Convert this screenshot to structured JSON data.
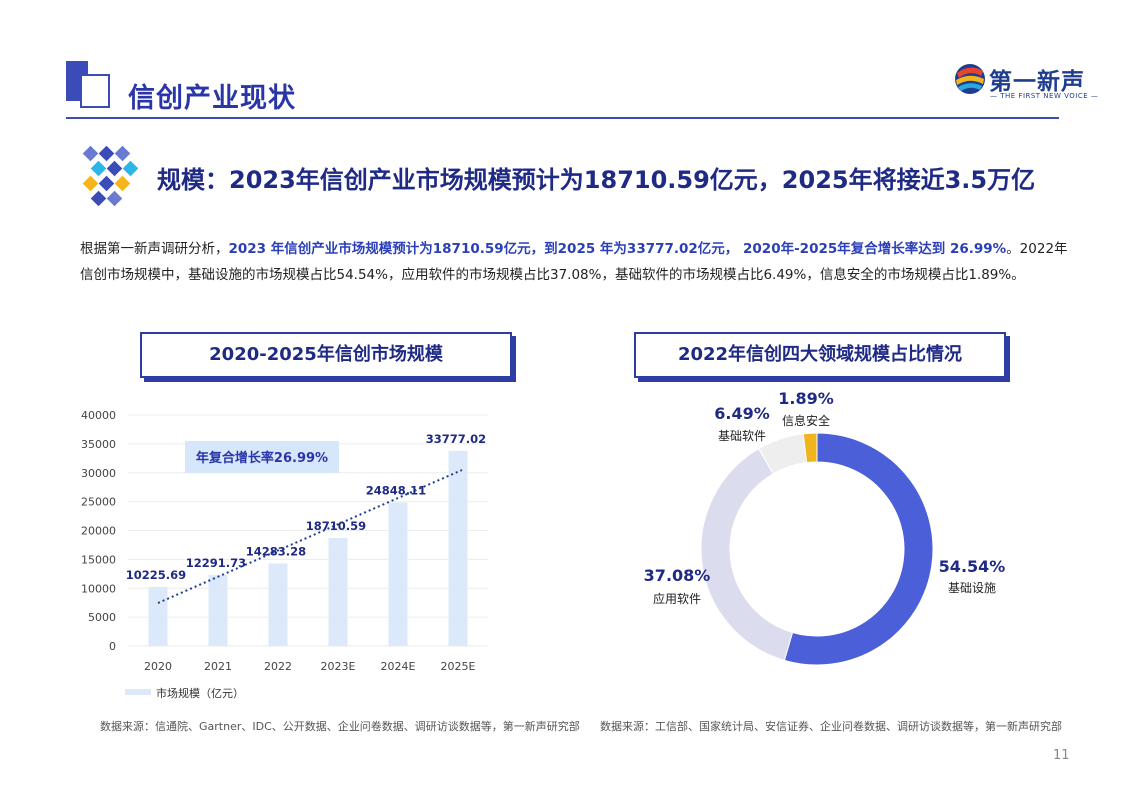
{
  "header": {
    "title": "信创产业现状",
    "logo_cn": "第一新声",
    "logo_en": "— THE FIRST NEW VOICE —"
  },
  "subtitle": "规模：2023年信创产业市场规模预计为18710.59亿元，2025年将接近3.5万亿",
  "paragraph": {
    "p1": "根据第一新声调研分析，",
    "p2": "2023 年信创产业市场规模预计为18710.59亿元，到2025 年为33777.02亿元， 2020年-2025年复合增长率达到 26.99%",
    "p3": "。2022年信创市场规模中，基础设施的市场规模占比54.54%，应用软件的市场规模占比37.08%，基础软件的市场规模占比6.49%，信息安全的市场规模占比1.89%。"
  },
  "bar_chart_title": "2020-2025年信创市场规模",
  "pie_chart_title": "2022年信创四大领域规模占比情况",
  "source_left": "数据来源：信通院、Gartner、IDC、公开数据、企业问卷数据、调研访谈数据等，第一新声研究部",
  "source_right": "数据来源：工信部、国家统计局、安信证券、企业问卷数据、调研访谈数据等，第一新声研究部",
  "page_number": "11",
  "colors": {
    "brand": "#2a36a8",
    "bar": "#dce9fb",
    "infrastructure": "#4a5fd8",
    "application": "#dcdcef",
    "basic_software": "#eeeeee",
    "security": "#f0b41c"
  },
  "chart_data": [
    {
      "type": "bar",
      "categories": [
        "2020",
        "2021",
        "2022",
        "2023E",
        "2024E",
        "2025E"
      ],
      "series": [
        {
          "name": "市场规模（亿元）",
          "values": [
            10225.69,
            12291.73,
            14283.28,
            18710.59,
            24848.11,
            33777.02
          ]
        }
      ],
      "data_labels": [
        "10225.69",
        "12291.73",
        "14283.28",
        "18710.59",
        "24848.11",
        "33777.02"
      ],
      "yticks": [
        "0",
        "5000",
        "10000",
        "15000",
        "20000",
        "25000",
        "30000",
        "35000",
        "40000"
      ],
      "ylim": [
        0,
        40000
      ],
      "annotation": "年复合增长率26.99%",
      "trendline": "dotted",
      "legend": "bottom-left"
    },
    {
      "type": "pie",
      "donut": true,
      "slices": [
        {
          "label": "基础设施",
          "value": 54.54,
          "text": "54.54%"
        },
        {
          "label": "应用软件",
          "value": 37.08,
          "text": "37.08%"
        },
        {
          "label": "基础软件",
          "value": 6.49,
          "text": "6.49%"
        },
        {
          "label": "信息安全",
          "value": 1.89,
          "text": "1.89%"
        }
      ]
    }
  ]
}
